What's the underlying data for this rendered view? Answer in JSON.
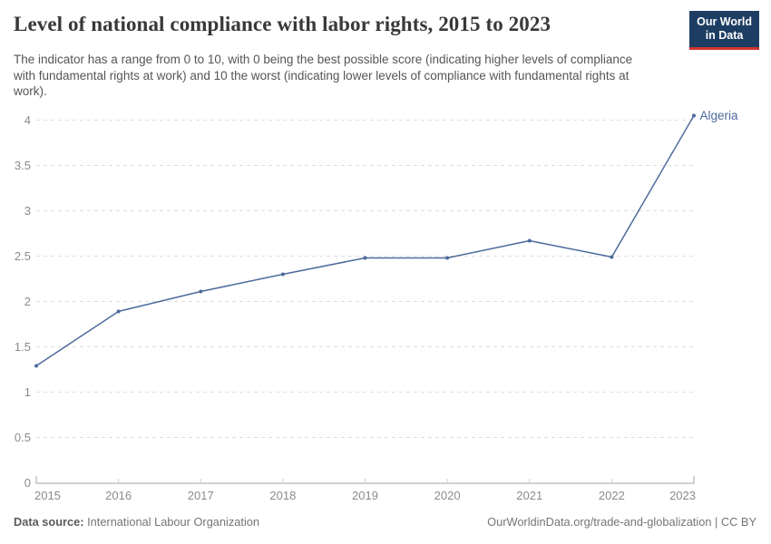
{
  "header": {
    "title": "Level of national compliance with labor rights, 2015 to 2023",
    "subtitle": "The indicator has a range from 0 to 10, with 0 being the best possible score (indicating higher levels of compliance with fundamental rights at work) and 10 the worst (indicating lower levels of compliance with fundamental rights at work).",
    "logo_line1": "Our World",
    "logo_line2": "in Data"
  },
  "chart_data": {
    "type": "line",
    "title": "Level of national compliance with labor rights, 2015 to 2023",
    "x": [
      2015,
      2016,
      2017,
      2018,
      2019,
      2020,
      2021,
      2022,
      2023
    ],
    "series": [
      {
        "name": "Algeria",
        "values": [
          1.29,
          1.89,
          2.11,
          2.3,
          2.48,
          2.48,
          2.67,
          2.49,
          4.05
        ],
        "color": "#4c6a9c"
      }
    ],
    "xlabel": "",
    "ylabel": "",
    "ylim": [
      0,
      4
    ],
    "yticks": [
      0,
      0.5,
      1,
      1.5,
      2,
      2.5,
      3,
      3.5,
      4
    ],
    "grid": "horizontal-dashed",
    "legend": "line-end-label"
  },
  "footer": {
    "source_label": "Data source:",
    "source_value": " International Labour Organization",
    "link": "OurWorldinData.org/trade-and-globalization | CC BY"
  },
  "colors": {
    "accent_line": "#4c6a9c",
    "logo_background": "#1d3d63",
    "logo_red": "#d2342f",
    "gridline": "#dedede",
    "axis": "#a3a3a3",
    "minor_tick": "#cfcfcf",
    "axis_text": "#8b8b8b",
    "title_text": "#383838",
    "subtitle_text": "#555555",
    "footer_text": "#757575"
  }
}
